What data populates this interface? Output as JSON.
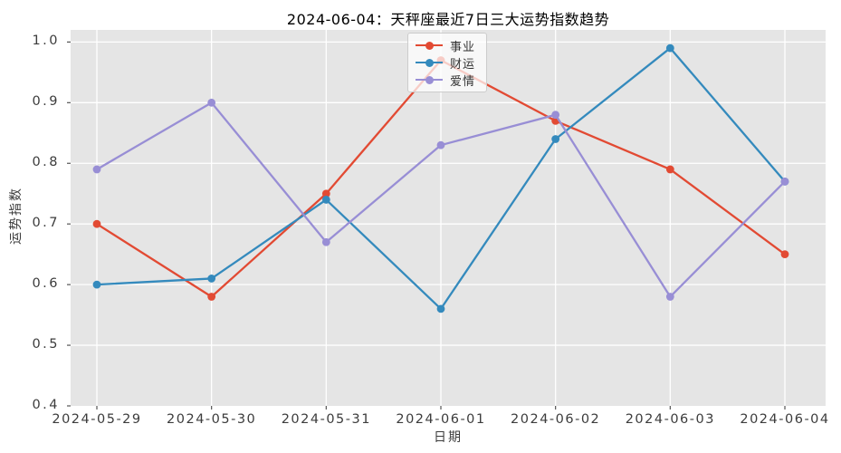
{
  "chart_data": {
    "type": "line",
    "title": "2024-06-04：天秤座最近7日三大运势指数趋势",
    "xlabel": "日期",
    "ylabel": "运势指数",
    "categories": [
      "2024-05-29",
      "2024-05-30",
      "2024-05-31",
      "2024-06-01",
      "2024-06-02",
      "2024-06-03",
      "2024-06-04"
    ],
    "series": [
      {
        "name": "事业",
        "color": "#E24A33",
        "values": [
          0.7,
          0.58,
          0.75,
          0.97,
          0.87,
          0.79,
          0.65
        ]
      },
      {
        "name": "财运",
        "color": "#348ABD",
        "values": [
          0.6,
          0.61,
          0.74,
          0.56,
          0.84,
          0.99,
          0.77
        ]
      },
      {
        "name": "爱情",
        "color": "#988ED5",
        "values": [
          0.79,
          0.9,
          0.67,
          0.83,
          0.88,
          0.58,
          0.77
        ]
      }
    ],
    "y_ticks": [
      "1.0",
      "0.9",
      "0.8",
      "0.7",
      "0.6",
      "0.5",
      "0.4"
    ],
    "ylim": [
      0.4,
      1.02
    ],
    "legend_position": "upper center",
    "grid": true,
    "plot_background": "#E5E5E5",
    "grid_color": "#FFFFFF",
    "tick_color": "#555555"
  }
}
